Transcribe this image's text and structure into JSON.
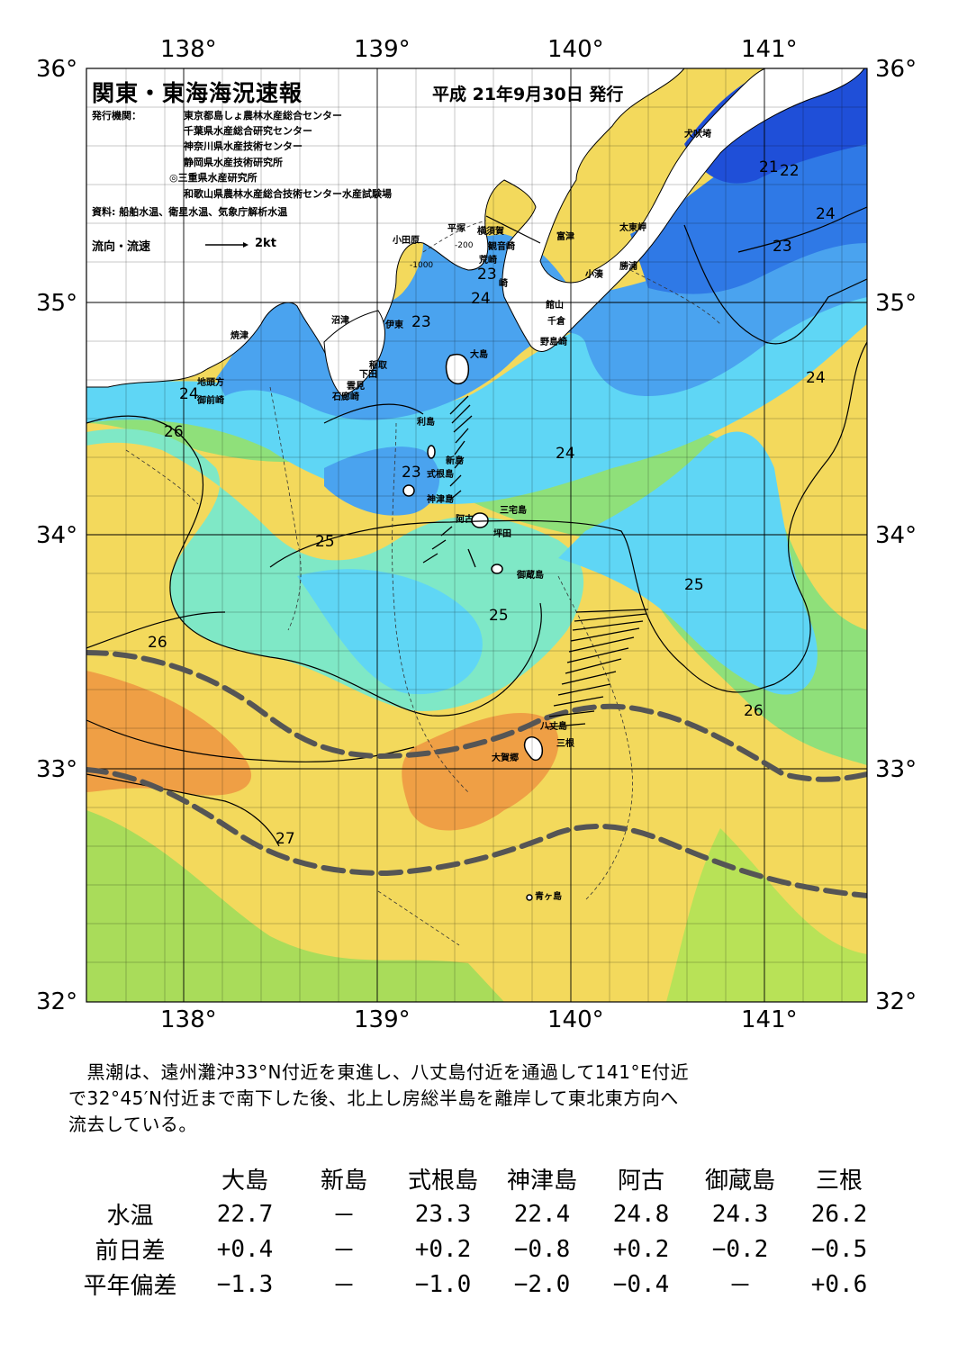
{
  "header": {
    "title": "関東・東海海況速報",
    "date": "平成 21年9月30日 発行",
    "issuer_label": "発行機関：",
    "issuers": [
      "東京都島しょ農林水産総合センター",
      "千葉県水産総合研究センター",
      "神奈川県水産技術センター",
      "静岡県水産技術研究所",
      "◎三重県水産研究所",
      "和歌山県農林水産総合技術センター水産試験場"
    ],
    "source": "資料: 船舶水温、衛星水温、気象庁解析水温",
    "flow_label": "流向・流速",
    "flow_scale": "2kt"
  },
  "axes": {
    "lon_top": [
      "138°",
      "139°",
      "140°",
      "141°"
    ],
    "lon_bottom": [
      "138°",
      "139°",
      "140°",
      "141°"
    ],
    "lat_left": [
      "36°",
      "35°",
      "34°",
      "33°",
      "32°"
    ],
    "lat_right": [
      "36°",
      "35°",
      "34°",
      "33°",
      "32°"
    ]
  },
  "places": {
    "inubozaki": "犬吠埼",
    "taitomisaki": "太東岬",
    "katsuura": "勝浦",
    "kominato": "小湊",
    "tateyama": "館山",
    "chikura": "千倉",
    "nojimazaki": "野島崎",
    "futtsu": "富津",
    "kannonzaki": "観音崎",
    "yokosuka": "横須賀",
    "hiratsuka": "平塚",
    "odawara": "小田原",
    "arasaki": "荒崎",
    "jogashima": "崎",
    "numazu": "沼津",
    "ito": "伊東",
    "inatori": "稲取",
    "shimoda": "下田",
    "mera": "雲見",
    "irozaki": "石廊崎",
    "yaizu": "焼津",
    "jitogata": "地頭方",
    "omaezaki": "御前崎",
    "oshima": "大島",
    "toshima": "利島",
    "niijima": "新島",
    "shikinejima": "式根島",
    "kozushima": "神津島",
    "miyakejima": "三宅島",
    "ako": "阿古",
    "tsubota": "坪田",
    "mikurajima": "御蔵島",
    "hachijojima": "八丈島",
    "sanne": "三根",
    "okago": "大賀郷",
    "aogashima": "青ヶ島"
  },
  "depth_labels": [
    "-200",
    "-1000"
  ],
  "isotherm_labels": [
    "21",
    "22",
    "24",
    "23",
    "24",
    "23",
    "24",
    "23",
    "24",
    "26",
    "24",
    "23",
    "25",
    "25",
    "25",
    "26",
    "26",
    "27"
  ],
  "summary": [
    "　黒潮は、遠州灘沖33°N付近を東進し、八丈島付近を通過して141°E付近",
    "で32°45′N付近まで南下した後、北上し房総半島を離岸して東北東方向へ",
    "流去している。"
  ],
  "table": {
    "columns": [
      "大島",
      "新島",
      "式根島",
      "神津島",
      "阿古",
      "御蔵島",
      "三根"
    ],
    "rows": [
      {
        "label": "水温",
        "values": [
          "22.7",
          "－",
          "23.3",
          "22.4",
          "24.8",
          "24.3",
          "26.2"
        ]
      },
      {
        "label": "前日差",
        "values": [
          "+0.4",
          "－",
          "+0.2",
          "−0.8",
          "+0.2",
          "−0.2",
          "−0.5"
        ]
      },
      {
        "label": "平年偏差",
        "values": [
          "−1.3",
          "－",
          "−1.0",
          "−2.0",
          "−0.4",
          "－",
          "+0.6"
        ]
      }
    ]
  },
  "colors": {
    "t21": "#1f4fd8",
    "t22": "#2f79e6",
    "t23": "#4aa3ef",
    "t24": "#5fd6f5",
    "t25": "#7fe8c6",
    "t25b": "#8fe07a",
    "t26": "#c9e84f",
    "t26b": "#f3d95c",
    "t27": "#f5c65a",
    "t28": "#ef9f45",
    "land": "#ffffff",
    "kuroshio_axis": "#555555"
  }
}
